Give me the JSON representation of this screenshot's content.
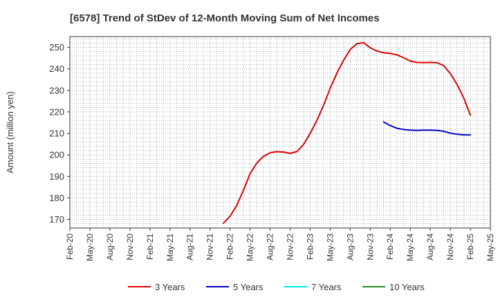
{
  "chart_data": {
    "type": "line",
    "title": "[6578]  Trend of StDev of 12-Month Moving Sum of Net Incomes",
    "xlabel": "",
    "ylabel": "Amount (million yen)",
    "ylim": [
      166,
      255
    ],
    "yticks": [
      170,
      180,
      190,
      200,
      210,
      220,
      230,
      240,
      250
    ],
    "xlim": [
      "Feb-20",
      "May-25"
    ],
    "xtick_labels": [
      "Feb-20",
      "May-20",
      "Aug-20",
      "Nov-20",
      "Feb-21",
      "May-21",
      "Aug-21",
      "Nov-21",
      "Feb-22",
      "May-22",
      "Aug-22",
      "Nov-22",
      "Feb-23",
      "May-23",
      "Aug-23",
      "Nov-23",
      "Feb-24",
      "May-24",
      "Aug-24",
      "Nov-24",
      "Feb-25",
      "May-25"
    ],
    "grid": true,
    "legend_position": "bottom",
    "series": [
      {
        "name": "3 Years",
        "color": "#dd0000",
        "points": [
          [
            "Jan-22",
            168.2
          ],
          [
            "Feb-22",
            171.5
          ],
          [
            "Mar-22",
            176.5
          ],
          [
            "Apr-22",
            183.5
          ],
          [
            "May-22",
            191.3
          ],
          [
            "Jun-22",
            196.2
          ],
          [
            "Jul-22",
            199.3
          ],
          [
            "Aug-22",
            201.0
          ],
          [
            "Sep-22",
            201.5
          ],
          [
            "Oct-22",
            201.3
          ],
          [
            "Nov-22",
            200.7
          ],
          [
            "Dec-22",
            201.5
          ],
          [
            "Jan-23",
            204.8
          ],
          [
            "Feb-23",
            210.0
          ],
          [
            "Mar-23",
            216.0
          ],
          [
            "Apr-23",
            223.0
          ],
          [
            "May-23",
            231.0
          ],
          [
            "Jun-23",
            238.0
          ],
          [
            "Jul-23",
            244.0
          ],
          [
            "Aug-23",
            249.0
          ],
          [
            "Sep-23",
            251.7
          ],
          [
            "Oct-23",
            252.2
          ],
          [
            "Nov-23",
            249.8
          ],
          [
            "Dec-23",
            248.3
          ],
          [
            "Jan-24",
            247.5
          ],
          [
            "Feb-24",
            247.2
          ],
          [
            "Mar-24",
            246.5
          ],
          [
            "Apr-24",
            245.2
          ],
          [
            "May-24",
            243.6
          ],
          [
            "Jun-24",
            243.0
          ],
          [
            "Jul-24",
            242.9
          ],
          [
            "Aug-24",
            243.0
          ],
          [
            "Sep-24",
            242.9
          ],
          [
            "Oct-24",
            241.5
          ],
          [
            "Nov-24",
            237.8
          ],
          [
            "Dec-24",
            232.8
          ],
          [
            "Jan-25",
            226.5
          ],
          [
            "Feb-25",
            218.5
          ]
        ]
      },
      {
        "name": "5 Years",
        "color": "#0000cc",
        "points": [
          [
            "Jan-24",
            215.3
          ],
          [
            "Feb-24",
            213.6
          ],
          [
            "Mar-24",
            212.4
          ],
          [
            "Apr-24",
            211.8
          ],
          [
            "May-24",
            211.5
          ],
          [
            "Jun-24",
            211.4
          ],
          [
            "Jul-24",
            211.5
          ],
          [
            "Aug-24",
            211.5
          ],
          [
            "Sep-24",
            211.4
          ],
          [
            "Oct-24",
            211.0
          ],
          [
            "Nov-24",
            210.1
          ],
          [
            "Dec-24",
            209.6
          ],
          [
            "Jan-25",
            209.3
          ],
          [
            "Feb-25",
            209.3
          ]
        ]
      },
      {
        "name": "7 Years",
        "color": "#00e5ee",
        "points": []
      },
      {
        "name": "10 Years",
        "color": "#228b22",
        "points": []
      }
    ]
  }
}
